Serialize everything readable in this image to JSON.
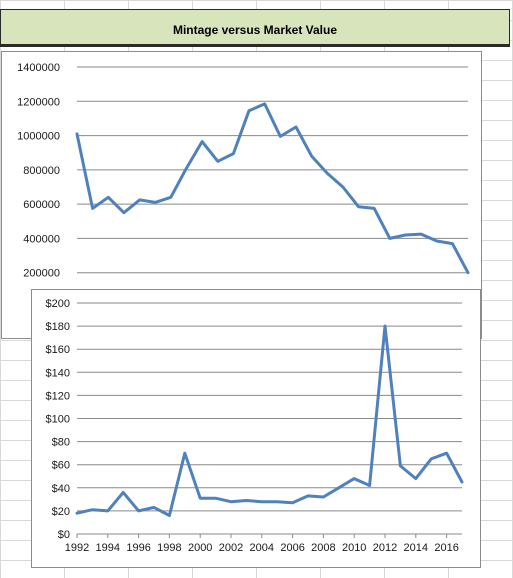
{
  "title": "Mintage versus Market Value",
  "chart_data": [
    {
      "type": "line",
      "title": "",
      "xlabel": "",
      "ylabel": "",
      "ylim": [
        0,
        1400000
      ],
      "yticks": [
        200000,
        400000,
        600000,
        800000,
        1000000,
        1200000,
        1400000
      ],
      "ytick_labels": [
        "200000",
        "400000",
        "600000",
        "800000",
        "1000000",
        "1200000",
        "1400000"
      ],
      "x": [
        1992,
        1993,
        1994,
        1995,
        1996,
        1997,
        1998,
        1999,
        2000,
        2001,
        2002,
        2003,
        2004,
        2005,
        2006,
        2007,
        2008,
        2009,
        2010,
        2011,
        2012,
        2013,
        2014,
        2015,
        2016,
        2017
      ],
      "series": [
        {
          "color": "#4f81bd",
          "values": [
            1010000,
            575000,
            640000,
            550000,
            625000,
            610000,
            640000,
            810000,
            965000,
            850000,
            895000,
            1145000,
            1185000,
            995000,
            1050000,
            880000,
            780000,
            700000,
            585000,
            575000,
            400000,
            420000,
            425000,
            385000,
            370000,
            200000
          ]
        }
      ],
      "grid": true,
      "legend": "none"
    },
    {
      "type": "line",
      "title": "",
      "xlabel": "",
      "ylabel": "",
      "ylim": [
        0,
        200
      ],
      "yticks": [
        0,
        20,
        40,
        60,
        80,
        100,
        120,
        140,
        160,
        180,
        200
      ],
      "ytick_labels": [
        "$0",
        "$20",
        "$40",
        "$60",
        "$80",
        "$100",
        "$120",
        "$140",
        "$160",
        "$180",
        "$200"
      ],
      "xticks": [
        1992,
        1994,
        1996,
        1998,
        2000,
        2002,
        2004,
        2006,
        2008,
        2010,
        2012,
        2014,
        2016
      ],
      "xtick_labels": [
        "1992",
        "1994",
        "1996",
        "1998",
        "2000",
        "2002",
        "2004",
        "2006",
        "2008",
        "2010",
        "2012",
        "2014",
        "2016"
      ],
      "x": [
        1992,
        1993,
        1994,
        1995,
        1996,
        1997,
        1998,
        1999,
        2000,
        2001,
        2002,
        2003,
        2004,
        2005,
        2006,
        2007,
        2008,
        2009,
        2010,
        2011,
        2012,
        2013,
        2014,
        2015,
        2016,
        2017
      ],
      "series": [
        {
          "color": "#4f81bd",
          "values": [
            18,
            21,
            20,
            36,
            20,
            23,
            16,
            70,
            31,
            31,
            28,
            29,
            28,
            28,
            27,
            33,
            32,
            40,
            48,
            42,
            180,
            59,
            48,
            65,
            70,
            45
          ]
        }
      ],
      "grid": true,
      "legend": "none"
    }
  ]
}
